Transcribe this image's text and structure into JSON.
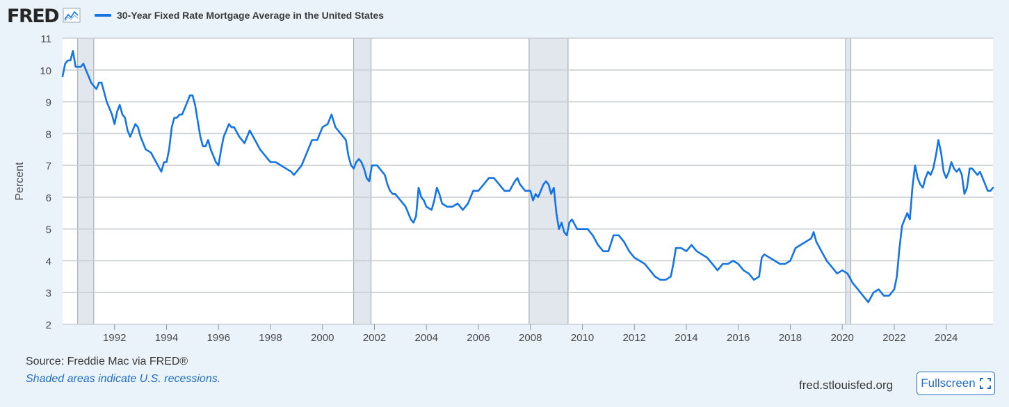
{
  "header": {
    "logo_text": "FRED",
    "legend_label": "30-Year Fixed Rate Mortgage Average in the United States"
  },
  "footer": {
    "source": "Source: Freddie Mac via FRED®",
    "note": "Shaded areas indicate U.S. recessions.",
    "url": "fred.stlouisfed.org",
    "fullscreen_label": "Fullscreen"
  },
  "colors": {
    "series": "#1474e4",
    "recession": "#e1e7ec",
    "background": "#eaf2fa",
    "link": "#1f6fc6"
  },
  "chart_data": {
    "type": "line",
    "title": "30-Year Fixed Rate Mortgage Average in the United States",
    "xlabel": "",
    "ylabel": "Percent",
    "xlim": [
      1990.0,
      2025.8
    ],
    "ylim": [
      2,
      11
    ],
    "yticks": [
      2,
      3,
      4,
      5,
      6,
      7,
      8,
      9,
      10,
      11
    ],
    "xticks": [
      1992,
      1994,
      1996,
      1998,
      2000,
      2002,
      2004,
      2006,
      2008,
      2010,
      2012,
      2014,
      2016,
      2018,
      2020,
      2022,
      2024
    ],
    "grid": true,
    "recessions": [
      [
        1990.58,
        1991.2
      ],
      [
        2001.2,
        2001.87
      ],
      [
        2007.95,
        2009.45
      ],
      [
        2020.13,
        2020.33
      ]
    ],
    "series": [
      {
        "name": "30-Year Fixed Rate Mortgage Average in the United States",
        "x": [
          1990.0,
          1990.1,
          1990.2,
          1990.3,
          1990.4,
          1990.5,
          1990.6,
          1990.7,
          1990.8,
          1990.9,
          1991.0,
          1991.1,
          1991.2,
          1991.3,
          1991.4,
          1991.5,
          1991.6,
          1991.7,
          1991.8,
          1991.9,
          1992.0,
          1992.1,
          1992.2,
          1992.3,
          1992.4,
          1992.5,
          1992.6,
          1992.7,
          1992.8,
          1992.9,
          1993.0,
          1993.2,
          1993.4,
          1993.6,
          1993.8,
          1993.9,
          1994.0,
          1994.1,
          1994.2,
          1994.3,
          1994.4,
          1994.5,
          1994.6,
          1994.7,
          1994.8,
          1994.9,
          1995.0,
          1995.1,
          1995.2,
          1995.3,
          1995.4,
          1995.5,
          1995.6,
          1995.7,
          1995.8,
          1995.9,
          1996.0,
          1996.1,
          1996.2,
          1996.3,
          1996.4,
          1996.5,
          1996.6,
          1996.8,
          1997.0,
          1997.2,
          1997.4,
          1997.6,
          1997.8,
          1998.0,
          1998.2,
          1998.4,
          1998.6,
          1998.8,
          1998.9,
          1999.0,
          1999.2,
          1999.4,
          1999.6,
          1999.8,
          2000.0,
          2000.2,
          2000.35,
          2000.5,
          2000.7,
          2000.9,
          2001.0,
          2001.1,
          2001.2,
          2001.3,
          2001.4,
          2001.5,
          2001.6,
          2001.7,
          2001.8,
          2001.9,
          2002.0,
          2002.1,
          2002.2,
          2002.3,
          2002.4,
          2002.5,
          2002.6,
          2002.7,
          2002.8,
          2002.9,
          2003.0,
          2003.2,
          2003.4,
          2003.5,
          2003.6,
          2003.7,
          2003.8,
          2003.9,
          2004.0,
          2004.2,
          2004.3,
          2004.4,
          2004.5,
          2004.6,
          2004.8,
          2005.0,
          2005.2,
          2005.4,
          2005.6,
          2005.8,
          2006.0,
          2006.2,
          2006.4,
          2006.5,
          2006.6,
          2006.8,
          2007.0,
          2007.2,
          2007.4,
          2007.5,
          2007.6,
          2007.8,
          2008.0,
          2008.1,
          2008.2,
          2008.3,
          2008.4,
          2008.5,
          2008.6,
          2008.7,
          2008.8,
          2008.9,
          2009.0,
          2009.1,
          2009.2,
          2009.3,
          2009.4,
          2009.5,
          2009.6,
          2009.8,
          2010.0,
          2010.2,
          2010.4,
          2010.6,
          2010.8,
          2011.0,
          2011.2,
          2011.4,
          2011.6,
          2011.8,
          2012.0,
          2012.2,
          2012.4,
          2012.6,
          2012.8,
          2013.0,
          2013.2,
          2013.4,
          2013.5,
          2013.6,
          2013.8,
          2014.0,
          2014.2,
          2014.4,
          2014.6,
          2014.8,
          2015.0,
          2015.2,
          2015.4,
          2015.6,
          2015.8,
          2016.0,
          2016.2,
          2016.4,
          2016.6,
          2016.8,
          2016.9,
          2017.0,
          2017.2,
          2017.4,
          2017.6,
          2017.8,
          2018.0,
          2018.2,
          2018.4,
          2018.6,
          2018.8,
          2018.9,
          2019.0,
          2019.2,
          2019.4,
          2019.6,
          2019.8,
          2020.0,
          2020.2,
          2020.4,
          2020.6,
          2020.8,
          2021.0,
          2021.2,
          2021.4,
          2021.6,
          2021.8,
          2022.0,
          2022.1,
          2022.2,
          2022.3,
          2022.4,
          2022.5,
          2022.6,
          2022.7,
          2022.8,
          2022.9,
          2023.0,
          2023.1,
          2023.2,
          2023.3,
          2023.4,
          2023.5,
          2023.6,
          2023.7,
          2023.8,
          2023.9,
          2024.0,
          2024.1,
          2024.2,
          2024.3,
          2024.4,
          2024.5,
          2024.6,
          2024.7,
          2024.8,
          2024.9,
          2025.0,
          2025.1,
          2025.2,
          2025.3,
          2025.4,
          2025.5,
          2025.6,
          2025.7,
          2025.8
        ],
        "values": [
          9.8,
          10.2,
          10.3,
          10.3,
          10.6,
          10.1,
          10.1,
          10.1,
          10.2,
          10.0,
          9.8,
          9.6,
          9.5,
          9.4,
          9.6,
          9.6,
          9.3,
          9.0,
          8.8,
          8.6,
          8.3,
          8.7,
          8.9,
          8.6,
          8.5,
          8.1,
          7.9,
          8.1,
          8.3,
          8.2,
          7.9,
          7.5,
          7.4,
          7.1,
          6.8,
          7.1,
          7.1,
          7.5,
          8.2,
          8.5,
          8.5,
          8.6,
          8.6,
          8.8,
          9.0,
          9.2,
          9.2,
          8.9,
          8.4,
          7.9,
          7.6,
          7.6,
          7.8,
          7.5,
          7.3,
          7.1,
          7.0,
          7.5,
          7.9,
          8.1,
          8.3,
          8.2,
          8.2,
          7.9,
          7.7,
          8.1,
          7.8,
          7.5,
          7.3,
          7.1,
          7.1,
          7.0,
          6.9,
          6.8,
          6.7,
          6.8,
          7.0,
          7.4,
          7.8,
          7.8,
          8.2,
          8.3,
          8.6,
          8.2,
          8.0,
          7.8,
          7.3,
          7.0,
          6.9,
          7.1,
          7.2,
          7.1,
          6.9,
          6.6,
          6.5,
          7.0,
          7.0,
          7.0,
          6.9,
          6.8,
          6.7,
          6.4,
          6.2,
          6.1,
          6.1,
          6.0,
          5.9,
          5.7,
          5.3,
          5.2,
          5.4,
          6.3,
          6.0,
          5.9,
          5.7,
          5.6,
          5.9,
          6.3,
          6.1,
          5.8,
          5.7,
          5.7,
          5.8,
          5.6,
          5.8,
          6.2,
          6.2,
          6.4,
          6.6,
          6.6,
          6.6,
          6.4,
          6.2,
          6.2,
          6.5,
          6.6,
          6.4,
          6.2,
          6.2,
          5.9,
          6.1,
          6.0,
          6.2,
          6.4,
          6.5,
          6.4,
          6.1,
          6.3,
          5.5,
          5.0,
          5.2,
          4.9,
          4.8,
          5.2,
          5.3,
          5.0,
          5.0,
          5.0,
          4.8,
          4.5,
          4.3,
          4.3,
          4.8,
          4.8,
          4.6,
          4.3,
          4.1,
          4.0,
          3.9,
          3.7,
          3.5,
          3.4,
          3.4,
          3.5,
          3.9,
          4.4,
          4.4,
          4.3,
          4.5,
          4.3,
          4.2,
          4.1,
          3.9,
          3.7,
          3.9,
          3.9,
          4.0,
          3.9,
          3.7,
          3.6,
          3.4,
          3.5,
          4.1,
          4.2,
          4.1,
          4.0,
          3.9,
          3.9,
          4.0,
          4.4,
          4.5,
          4.6,
          4.7,
          4.9,
          4.6,
          4.3,
          4.0,
          3.8,
          3.6,
          3.7,
          3.6,
          3.3,
          3.1,
          2.9,
          2.7,
          3.0,
          3.1,
          2.9,
          2.9,
          3.1,
          3.5,
          4.4,
          5.1,
          5.3,
          5.5,
          5.3,
          6.3,
          7.0,
          6.6,
          6.4,
          6.3,
          6.6,
          6.8,
          6.7,
          6.9,
          7.3,
          7.8,
          7.4,
          6.8,
          6.6,
          6.8,
          7.1,
          6.9,
          6.8,
          6.9,
          6.7,
          6.1,
          6.3,
          6.9,
          6.9,
          6.8,
          6.7,
          6.8,
          6.6,
          6.4,
          6.2,
          6.2,
          6.3
        ]
      }
    ]
  }
}
